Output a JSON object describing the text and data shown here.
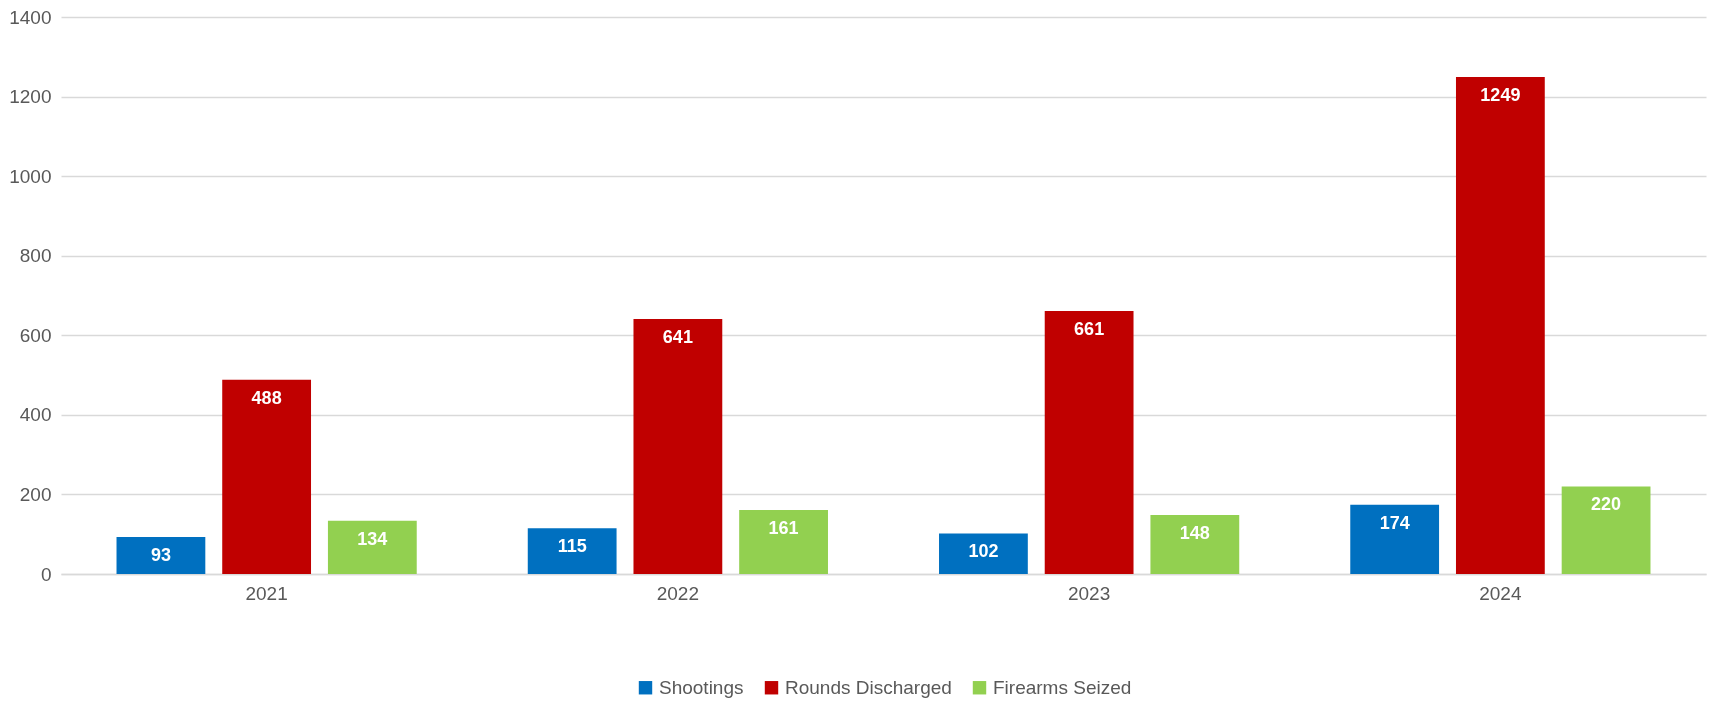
{
  "chart_data": {
    "type": "bar",
    "categories": [
      "2021",
      "2022",
      "2023",
      "2024"
    ],
    "series": [
      {
        "name": "Shootings",
        "color": "#0070c0",
        "values": [
          93,
          115,
          102,
          174
        ]
      },
      {
        "name": "Rounds Discharged",
        "color": "#c00000",
        "values": [
          488,
          641,
          661,
          1249
        ]
      },
      {
        "name": "Firearms Seized",
        "color": "#92d050",
        "values": [
          134,
          161,
          148,
          220
        ]
      }
    ],
    "ylim": [
      0,
      1400
    ],
    "yticks": [
      0,
      200,
      400,
      600,
      800,
      1000,
      1200,
      1400
    ],
    "grid": "y",
    "legend": "bottom",
    "data_labels": true
  }
}
